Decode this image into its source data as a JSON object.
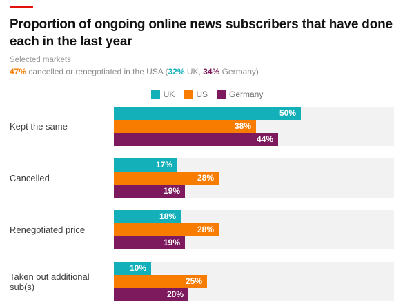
{
  "accent_color": "#e3120b",
  "title": "Proportion of ongoing online news subscribers that have done\neach in the last year",
  "subtitle": "Selected markets",
  "callout": {
    "us_value": "47%",
    "text_after_us": " cancelled or renegotiated in the USA (",
    "uk_value": "32%",
    "text_after_uk": " UK, ",
    "de_value": "34%",
    "text_after_de": " Germany)"
  },
  "colors": {
    "uk": "#14b0ba",
    "us": "#f87c00",
    "germany": "#7d1a5e",
    "track": "#f2f2f2",
    "accent": "#e3120b"
  },
  "chart_data": {
    "type": "bar",
    "orientation": "horizontal",
    "title": "Proportion of ongoing online news subscribers that have done each in the last year",
    "subtitle": "Selected markets",
    "annotation": "47% cancelled or renegotiated in the USA (32% UK, 34% Germany)",
    "categories": [
      "Kept the same",
      "Cancelled",
      "Renegotiated price",
      "Taken out additional sub(s)"
    ],
    "series": [
      {
        "name": "UK",
        "color": "#14b0ba",
        "values": [
          50,
          17,
          18,
          10
        ]
      },
      {
        "name": "US",
        "color": "#f87c00",
        "values": [
          38,
          28,
          28,
          25
        ]
      },
      {
        "name": "Germany",
        "color": "#7d1a5e",
        "values": [
          44,
          19,
          19,
          20
        ]
      }
    ],
    "value_suffix": "%",
    "xlim": [
      0,
      75
    ],
    "grid": false,
    "legend_position": "top-center",
    "value_labels": "inside-end"
  }
}
